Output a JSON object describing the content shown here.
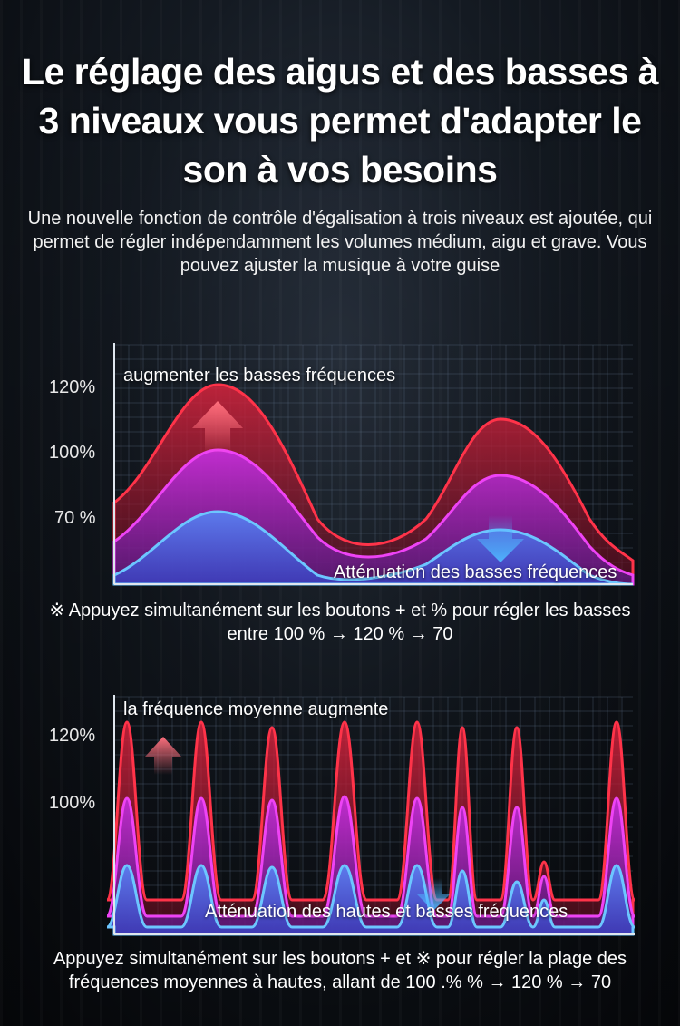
{
  "title": "Le réglage des aigus et des basses à 3 niveaux vous permet d'adapter le son à vos besoins",
  "subtitle": "Une nouvelle fonction de contrôle d'égalisation à trois niveaux est ajoutée, qui permet de régler indépendamment les volumes médium, aigu et grave. Vous pouvez ajuster la musique à votre guise",
  "chart1": {
    "y_labels": [
      "120%",
      "100%",
      "70 %"
    ],
    "boost_label": "augmenter les basses fréquences",
    "cut_label": "Atténuation des basses fréquences",
    "note": "※ Appuyez simultanément sur les boutons + et % pour régler les basses entre 100 % → 120 % → 70"
  },
  "chart2": {
    "y_labels": [
      "120%",
      "100%"
    ],
    "boost_label": "la fréquence moyenne augmente",
    "cut_label": "Atténuation des hautes et basses fréquences",
    "note": "Appuyez simultanément sur les boutons + et ※ pour régler la plage des fréquences moyennes à hautes, allant de 100 .% % → 120 % → 70"
  },
  "colors": {
    "boost": "#e8203c",
    "mid": "#d62fe6",
    "cut": "#55b8f2",
    "grid": "#5a6a80"
  }
}
